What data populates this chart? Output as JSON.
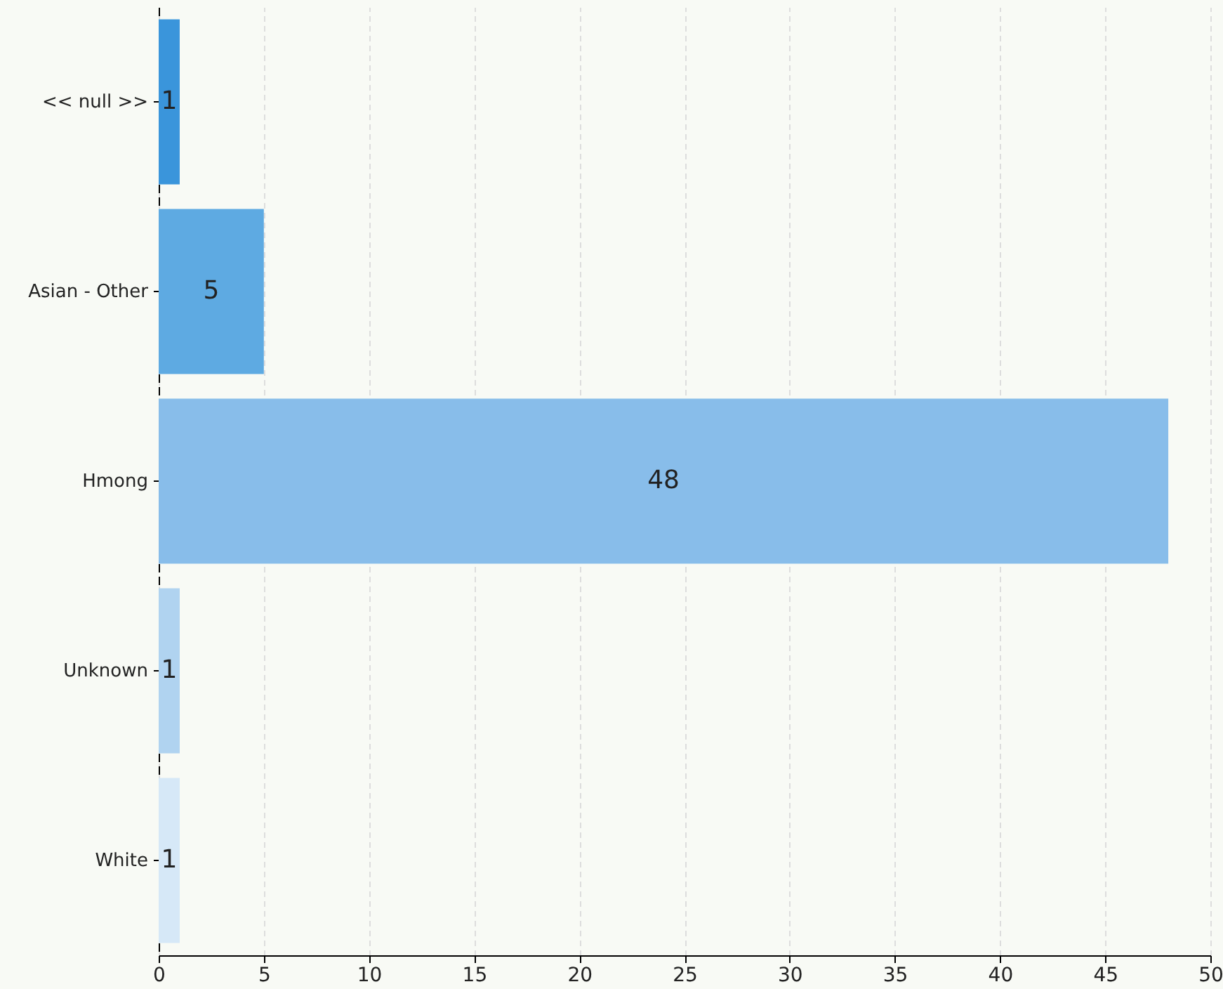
{
  "chart_data": {
    "type": "bar",
    "orientation": "horizontal",
    "categories": [
      "<< null >>",
      "Asian - Other",
      "Hmong",
      "Unknown",
      "White"
    ],
    "values": [
      1,
      5,
      48,
      1,
      1
    ],
    "colors": [
      "#3a95db",
      "#5eaae2",
      "#88bdea",
      "#b0d3f0",
      "#d6e8f7"
    ],
    "xlim": [
      0,
      50
    ],
    "xticks": [
      0,
      5,
      10,
      15,
      20,
      25,
      30,
      35,
      40,
      45,
      50
    ],
    "grid": "x",
    "data_labels": true
  }
}
